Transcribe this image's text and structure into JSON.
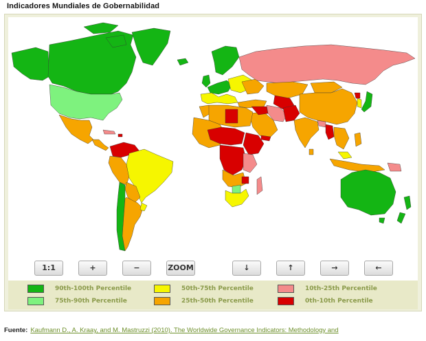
{
  "title": "Indicadores Mundiales de Gobernabilidad",
  "colors": {
    "p90_100": "#14b514",
    "p75_90": "#7ef27e",
    "p50_75": "#f6f600",
    "p25_50": "#f6a500",
    "p10_25": "#f48b8b",
    "p0_10": "#d80000",
    "panel_bg": "#eff0dc",
    "legend_bg": "#e8e9c8",
    "legend_text": "#8a9a4a",
    "link": "#6d8f2a"
  },
  "controls": {
    "reset": "1:1",
    "zoom_in": "+",
    "zoom_out": "−",
    "zoom": "ZOOM",
    "pan_down": "↓",
    "pan_up": "↑",
    "pan_right": "→",
    "pan_left": "←"
  },
  "legend": {
    "p90_100": "90th-100th Percentile",
    "p75_90": "75th-90th Percentile",
    "p50_75": "50th-75th Percentile",
    "p25_50": "25th-50th Percentile",
    "p10_25": "10th-25th Percentile",
    "p0_10": "0th-10th Percentile"
  },
  "source": {
    "label": "Fuente:",
    "link_text": "Kaufmann D., A. Kraay, and M. Mastruzzi (2010). The Worldwide Governance Indicators: Methodology and"
  }
}
